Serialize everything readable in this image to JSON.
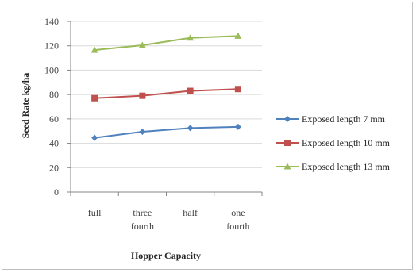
{
  "chart_data": {
    "type": "line",
    "categories": [
      [
        "full"
      ],
      [
        "three",
        "fourth"
      ],
      [
        "half"
      ],
      [
        "one",
        "fourth"
      ]
    ],
    "series": [
      {
        "name": "Exposed length 7 mm",
        "values": [
          44.5,
          49.5,
          52.5,
          53.5
        ],
        "color": "#4f81bd",
        "marker": "diamond"
      },
      {
        "name": "Exposed length 10 mm",
        "values": [
          77.0,
          79.0,
          83.0,
          84.5
        ],
        "color": "#c0504d",
        "marker": "square"
      },
      {
        "name": "Exposed length 13 mm",
        "values": [
          116.5,
          120.5,
          126.5,
          128.0
        ],
        "color": "#9bbb59",
        "marker": "triangle"
      }
    ],
    "xlabel": "Hopper Capacity",
    "ylabel": "Seed Rate kg/ha",
    "ylim": [
      0,
      140
    ],
    "yticks": [
      0,
      20,
      40,
      60,
      80,
      100,
      120,
      140
    ],
    "grid": true,
    "legend_position": "right"
  }
}
